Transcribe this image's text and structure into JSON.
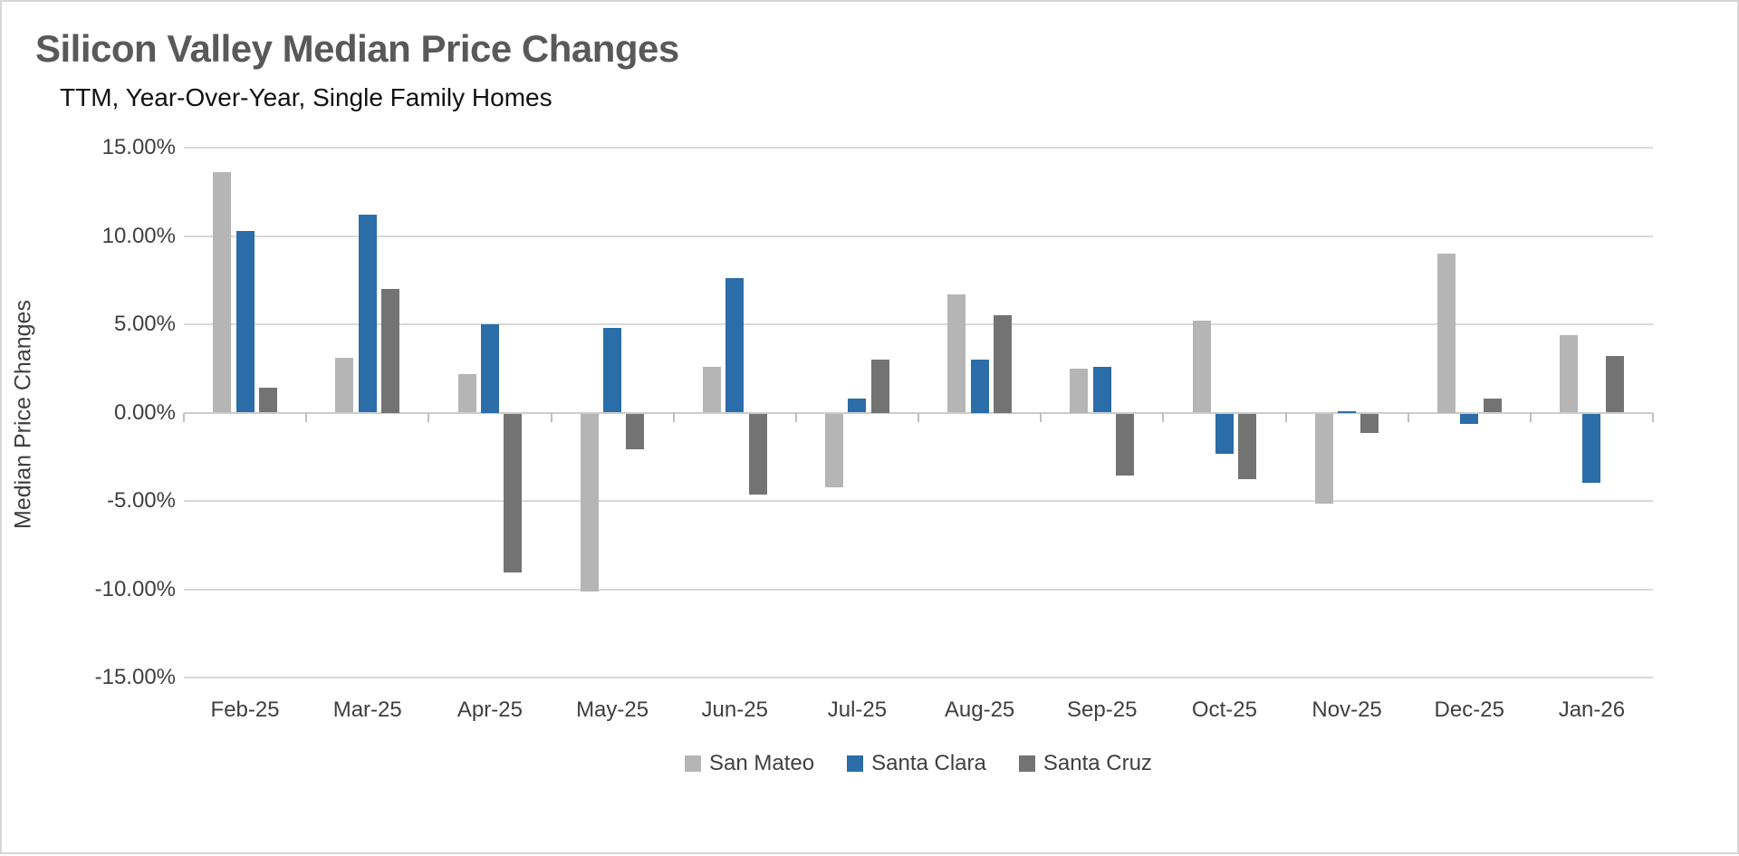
{
  "page": {
    "type": "report-chart-image"
  },
  "chart_data": {
    "type": "bar",
    "title": "Silicon Valley Median Price Changes",
    "subtitle": "TTM, Year-Over-Year, Single Family Homes",
    "xlabel": "",
    "ylabel": "Median Price Changes",
    "ylim": [
      -15,
      15
    ],
    "yticks": [
      15,
      10,
      5,
      0,
      -5,
      -10,
      -15
    ],
    "ytick_labels": [
      "15.00%",
      "10.00%",
      "5.00%",
      "0.00%",
      "-5.00%",
      "-10.00%",
      "-15.00%"
    ],
    "grid": "horizontal",
    "legend_position": "bottom",
    "value_unit": "percent",
    "categories": [
      "Feb-25",
      "Mar-25",
      "Apr-25",
      "May-25",
      "Jun-25",
      "Jul-25",
      "Aug-25",
      "Sep-25",
      "Oct-25",
      "Nov-25",
      "Dec-25",
      "Jan-26"
    ],
    "series": [
      {
        "name": "San Mateo",
        "color": "#b5b5b5",
        "values": [
          13.6,
          3.1,
          2.2,
          -10.1,
          2.6,
          -4.2,
          6.7,
          2.5,
          5.2,
          -5.1,
          9.0,
          4.4
        ]
      },
      {
        "name": "Santa Clara",
        "color": "#2b6da9",
        "values": [
          10.3,
          11.2,
          5.0,
          4.8,
          7.6,
          0.8,
          3.0,
          2.6,
          -2.3,
          0.1,
          -0.6,
          -3.9
        ]
      },
      {
        "name": "Santa Cruz",
        "color": "#737373",
        "values": [
          1.4,
          7.0,
          -9.0,
          -2.0,
          -4.6,
          3.0,
          5.5,
          -3.5,
          -3.7,
          -1.1,
          0.8,
          3.2
        ]
      }
    ],
    "colors": {
      "gridline": "#d9d9d9",
      "zero_line": "#cccccc",
      "axis_tick": "#bfbfbf",
      "title_text": "#595959",
      "axis_text": "#3f3f3f"
    }
  }
}
